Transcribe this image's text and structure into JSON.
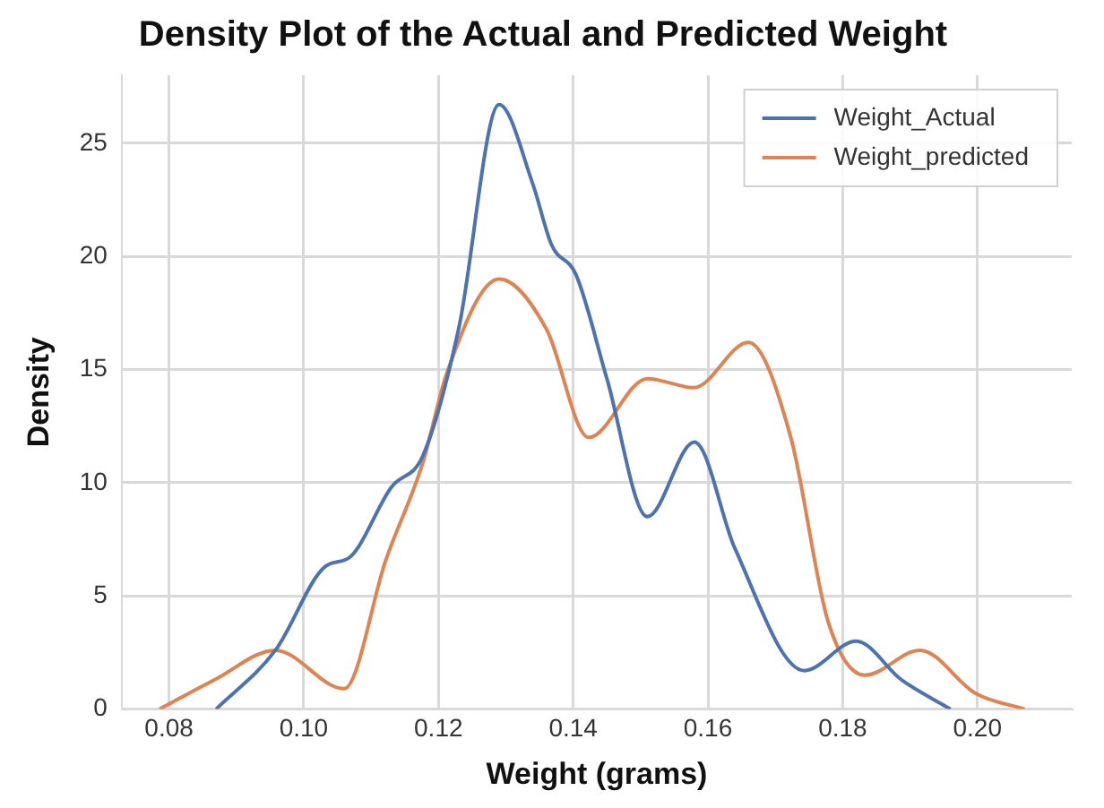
{
  "chart_data": {
    "type": "line",
    "title": "Density Plot of the Actual and Predicted Weight",
    "xlabel": "Weight (grams)",
    "ylabel": "Density",
    "xlim": [
      0.073,
      0.214
    ],
    "xticks": [
      {
        "value": 0.08,
        "label": "0.08"
      },
      {
        "value": 0.1,
        "label": "0.10"
      },
      {
        "value": 0.12,
        "label": "0.12"
      },
      {
        "value": 0.14,
        "label": "0.14"
      },
      {
        "value": 0.16,
        "label": "0.16"
      },
      {
        "value": 0.18,
        "label": "0.18"
      },
      {
        "value": 0.2,
        "label": "0.20"
      }
    ],
    "ylim": [
      0,
      28
    ],
    "yticks": [
      0,
      5,
      10,
      15,
      20,
      25
    ],
    "grid": true,
    "legend": "top right",
    "marker": "none",
    "line_style": "solid",
    "series": [
      {
        "name": "Weight_Actual",
        "color": "#4c72b0",
        "x": [
          0.087,
          0.0958,
          0.1032,
          0.1068,
          0.113,
          0.1177,
          0.123,
          0.129,
          0.134,
          0.1368,
          0.1404,
          0.145,
          0.151,
          0.158,
          0.164,
          0.1743,
          0.182,
          0.1887,
          0.196
        ],
        "values": [
          0,
          2.6,
          6.3,
          6.7,
          9.8,
          11.2,
          16.8,
          26.7,
          23.2,
          20.5,
          19.2,
          14.6,
          8.5,
          11.8,
          7.1,
          1.7,
          3.0,
          1.3,
          0
        ]
      },
      {
        "name": "Weight_predicted",
        "color": "#dd8452",
        "x": [
          0.0786,
          0.0868,
          0.0958,
          0.106,
          0.1122,
          0.1177,
          0.1213,
          0.129,
          0.136,
          0.1423,
          0.151,
          0.1579,
          0.166,
          0.1723,
          0.1778,
          0.1833,
          0.1915,
          0.1997,
          0.207
        ],
        "values": [
          0,
          1.3,
          2.6,
          0.9,
          6.6,
          10.9,
          14.9,
          19.0,
          16.8,
          12.0,
          14.6,
          14.2,
          16.2,
          12.0,
          3.9,
          1.5,
          2.6,
          0.7,
          0
        ]
      }
    ]
  }
}
